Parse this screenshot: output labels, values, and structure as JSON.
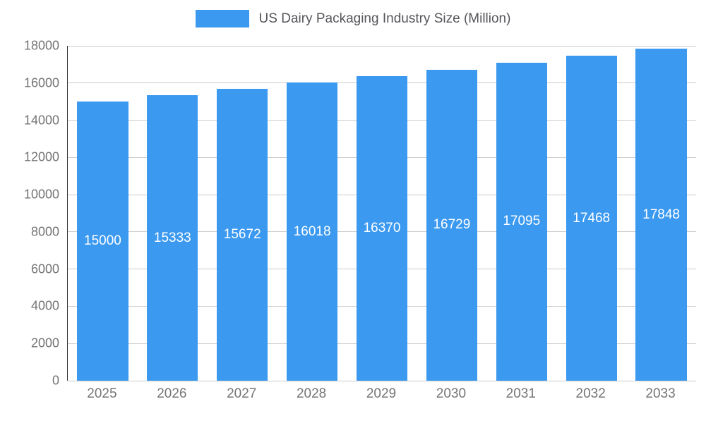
{
  "chart_data": {
    "type": "bar",
    "title": "US Dairy Packaging Industry Size (Million)",
    "categories": [
      "2025",
      "2026",
      "2027",
      "2028",
      "2029",
      "2030",
      "2031",
      "2032",
      "2033"
    ],
    "values": [
      15000,
      15333,
      15672,
      16018,
      16370,
      16729,
      17095,
      17468,
      17848
    ],
    "xlabel": "",
    "ylabel": "",
    "ylim": [
      0,
      18000
    ],
    "yticks": [
      0,
      2000,
      4000,
      6000,
      8000,
      10000,
      12000,
      14000,
      16000,
      18000
    ],
    "grid": true,
    "legend_position": "top",
    "colors": {
      "bar": "#3b99f0",
      "value_label": "#ffffff",
      "axis_text": "#757575",
      "gridline": "#cccccc",
      "axis_line": "#333333",
      "title_text": "#55565a"
    }
  }
}
